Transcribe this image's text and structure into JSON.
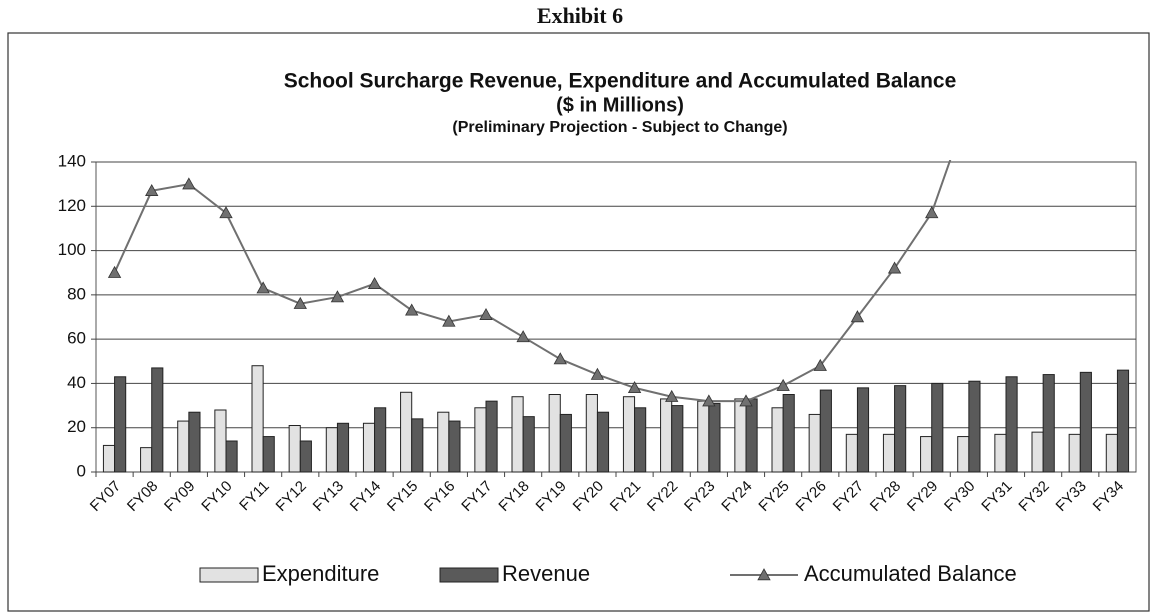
{
  "exhibit": "Exhibit 6",
  "chart_data": {
    "type": "bar_line",
    "title": "School Surcharge Revenue, Expenditure and Accumulated Balance",
    "subtitle": "($ in Millions)",
    "note": "(Preliminary Projection - Subject to Change)",
    "categories": [
      "FY07",
      "FY08",
      "FY09",
      "FY10",
      "FY11",
      "FY12",
      "FY13",
      "FY14",
      "FY15",
      "FY16",
      "FY17",
      "FY18",
      "FY19",
      "FY20",
      "FY21",
      "FY22",
      "FY23",
      "FY24",
      "FY25",
      "FY26",
      "FY27",
      "FY28",
      "FY29",
      "FY30",
      "FY31",
      "FY32",
      "FY33",
      "FY34"
    ],
    "series": [
      {
        "name": "Expenditure",
        "type": "bar",
        "color": "#e2e2e2",
        "values": [
          12,
          11,
          23,
          28,
          48,
          21,
          20,
          22,
          36,
          27,
          29,
          34,
          35,
          35,
          34,
          33,
          32,
          33,
          29,
          26,
          17,
          17,
          16,
          16,
          17,
          18,
          17,
          17
        ]
      },
      {
        "name": "Revenue",
        "type": "bar",
        "color": "#5a5a5a",
        "values": [
          43,
          47,
          27,
          14,
          16,
          14,
          22,
          29,
          24,
          23,
          32,
          25,
          26,
          27,
          29,
          30,
          31,
          33,
          35,
          37,
          38,
          39,
          40,
          41,
          43,
          44,
          45,
          46
        ]
      },
      {
        "name": "Accumulated Balance",
        "type": "line",
        "color": "#707070",
        "values": [
          90,
          127,
          130,
          117,
          83,
          76,
          79,
          85,
          73,
          68,
          71,
          61,
          51,
          44,
          38,
          34,
          32,
          32,
          39,
          48,
          70,
          92,
          117,
          165,
          null,
          null,
          null,
          null
        ]
      }
    ],
    "ylim": [
      0,
      140
    ],
    "yticks": [
      0,
      20,
      40,
      60,
      80,
      100,
      120,
      140
    ],
    "grid": true,
    "legend": "bottom"
  }
}
